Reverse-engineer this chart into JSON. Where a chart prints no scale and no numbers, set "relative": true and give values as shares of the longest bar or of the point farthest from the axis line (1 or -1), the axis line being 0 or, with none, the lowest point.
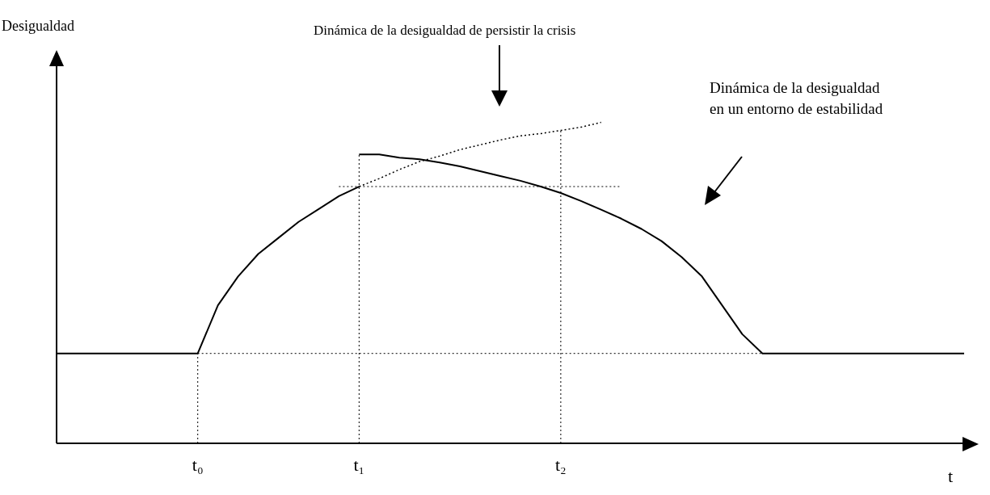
{
  "chart_data": {
    "type": "line",
    "relative": true,
    "xlabel": "t",
    "categories": [
      null,
      null,
      null,
      null,
      null,
      null,
      null,
      "t₀",
      null,
      null,
      null,
      null,
      null,
      null,
      null,
      "t₁",
      null,
      null,
      null,
      null,
      null,
      null,
      null,
      null,
      null,
      "t₂",
      null,
      null,
      null,
      null,
      null,
      null,
      null,
      null,
      null,
      null,
      null,
      null,
      null,
      null,
      null,
      null,
      null,
      null,
      null,
      null
    ],
    "series": [
      {
        "color": "#000000",
        "line_style": "solid",
        "values": [
          0.28,
          0.28,
          0.28,
          0.28,
          0.28,
          0.28,
          0.28,
          0.28,
          0.43,
          0.52,
          0.59,
          0.64,
          0.69,
          0.73,
          0.77,
          0.8,
          null,
          null,
          null,
          null,
          null,
          null,
          null,
          null,
          null,
          null,
          null,
          null,
          null,
          null,
          null,
          null,
          null,
          null,
          null,
          null,
          null,
          null,
          null,
          null,
          null,
          null,
          null,
          null,
          null,
          null
        ]
      },
      {
        "color": "#000000",
        "line_style": "solid",
        "values": [
          null,
          null,
          null,
          null,
          null,
          null,
          null,
          null,
          null,
          null,
          null,
          null,
          null,
          null,
          null,
          0.9,
          0.9,
          0.89,
          0.885,
          0.875,
          0.863,
          0.848,
          0.833,
          0.818,
          0.8,
          0.78,
          0.755,
          0.728,
          0.7,
          0.668,
          0.63,
          0.58,
          0.52,
          0.43,
          0.34,
          0.28,
          0.28,
          0.28,
          0.28,
          0.28,
          0.28,
          0.28,
          0.28,
          0.28,
          0.28,
          0.28
        ]
      },
      {
        "color": "#000000",
        "line_style": "dotted",
        "values": [
          null,
          null,
          null,
          null,
          null,
          null,
          null,
          null,
          null,
          null,
          null,
          null,
          null,
          null,
          null,
          0.8,
          0.825,
          0.853,
          0.878,
          0.895,
          0.915,
          0.93,
          0.945,
          0.958,
          0.965,
          0.975,
          0.985,
          1.0,
          null,
          null,
          null,
          null,
          null,
          null,
          null,
          null,
          null,
          null,
          null,
          null,
          null,
          null,
          null,
          null,
          null,
          null
        ]
      }
    ],
    "ref_lines": [
      {
        "axis": "x",
        "value": "t₀",
        "line_style": "dotted"
      },
      {
        "axis": "x",
        "value": "t₁",
        "line_style": "dotted"
      },
      {
        "axis": "x",
        "value": "t₂",
        "line_style": "dotted"
      },
      {
        "axis": "y",
        "value": 0.28,
        "line_style": "dotted"
      },
      {
        "axis": "y",
        "value": 0.8,
        "line_style": "dotted"
      }
    ],
    "annotations": [
      "Desigualdad",
      "Dinámica de la desigualdad de persistir la crisis",
      "Dinámica de la desigualdad\nen un entorno de estabilidad"
    ],
    "grid": false,
    "legend": false,
    "marker": "none"
  }
}
